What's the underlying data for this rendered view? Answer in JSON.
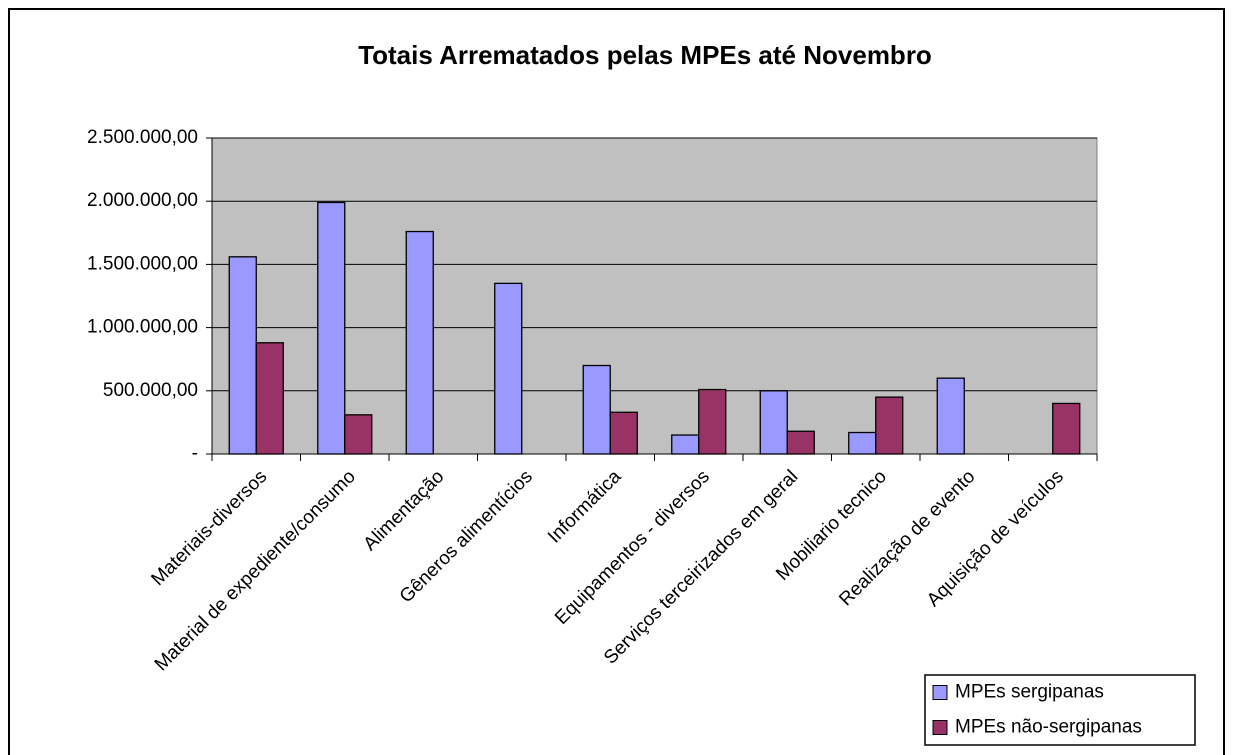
{
  "chart_data": {
    "type": "bar",
    "title": "Totais Arrematados pelas MPEs até Novembro",
    "categories": [
      "Materiais-diversos",
      "Material de expediente/consumo",
      "Alimentação",
      "Gêneros alimentícios",
      "Informática",
      "Equipamentos - diversos",
      "Serviços terceirizados em geral",
      "Mobiliario tecnico",
      "Realização de evento",
      "Aquisição de veículos"
    ],
    "series": [
      {
        "name": "MPEs sergipanas",
        "color": "#9999ff",
        "values": [
          1560000,
          1990000,
          1760000,
          1350000,
          700000,
          150000,
          500000,
          170000,
          600000,
          null
        ]
      },
      {
        "name": "MPEs não-sergipanas",
        "color": "#993366",
        "values": [
          880000,
          310000,
          null,
          null,
          330000,
          510000,
          180000,
          450000,
          null,
          400000
        ]
      }
    ],
    "ylim": [
      0,
      2500000
    ],
    "yticks": [
      {
        "value": 0,
        "label": "-"
      },
      {
        "value": 500000,
        "label": "500.000,00"
      },
      {
        "value": 1000000,
        "label": "1.000.000,00"
      },
      {
        "value": 1500000,
        "label": "1.500.000,00"
      },
      {
        "value": 2000000,
        "label": "2.000.000,00"
      },
      {
        "value": 2500000,
        "label": "2.500.000,00"
      }
    ],
    "grid": true,
    "legend": "bottom-right"
  }
}
